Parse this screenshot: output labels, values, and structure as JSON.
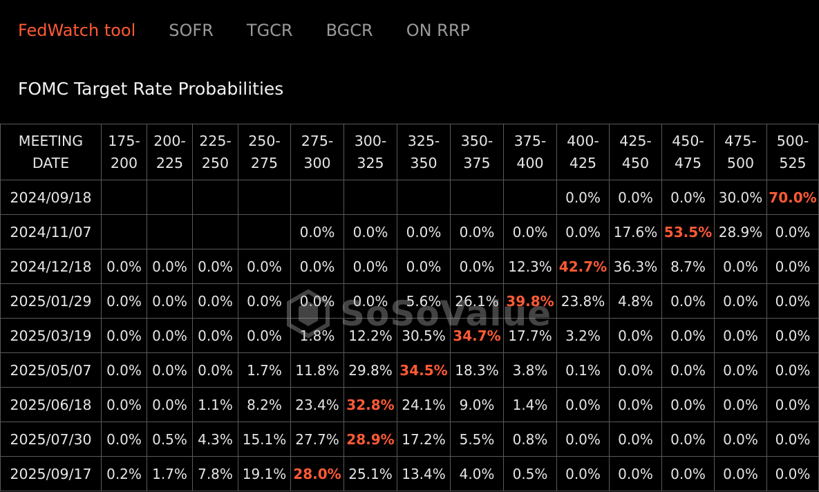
{
  "tabs": [
    {
      "label": "FedWatch tool",
      "active": true
    },
    {
      "label": "SOFR",
      "active": false
    },
    {
      "label": "TGCR",
      "active": false
    },
    {
      "label": "BGCR",
      "active": false
    },
    {
      "label": "ON RRP",
      "active": false
    }
  ],
  "title": "FOMC Target Rate Probabilities",
  "watermark": "SoSoValue",
  "accent_color": "#ff5a36",
  "table": {
    "first_header": [
      "MEETING",
      "DATE"
    ],
    "columns": [
      [
        "175-",
        "200"
      ],
      [
        "200-",
        "225"
      ],
      [
        "225-",
        "250"
      ],
      [
        "250-",
        "275"
      ],
      [
        "275-",
        "300"
      ],
      [
        "300-",
        "325"
      ],
      [
        "325-",
        "350"
      ],
      [
        "350-",
        "375"
      ],
      [
        "375-",
        "400"
      ],
      [
        "400-",
        "425"
      ],
      [
        "425-",
        "450"
      ],
      [
        "450-",
        "475"
      ],
      [
        "475-",
        "500"
      ],
      [
        "500-",
        "525"
      ]
    ],
    "rows": [
      {
        "date": "2024/09/18",
        "values": [
          "",
          "",
          "",
          "",
          "",
          "",
          "",
          "",
          "",
          "0.0%",
          "0.0%",
          "0.0%",
          "30.0%",
          "70.0%"
        ],
        "max": 13
      },
      {
        "date": "2024/11/07",
        "values": [
          "",
          "",
          "",
          "",
          "0.0%",
          "0.0%",
          "0.0%",
          "0.0%",
          "0.0%",
          "0.0%",
          "17.6%",
          "53.5%",
          "28.9%",
          "0.0%"
        ],
        "max": 11
      },
      {
        "date": "2024/12/18",
        "values": [
          "0.0%",
          "0.0%",
          "0.0%",
          "0.0%",
          "0.0%",
          "0.0%",
          "0.0%",
          "0.0%",
          "12.3%",
          "42.7%",
          "36.3%",
          "8.7%",
          "0.0%",
          "0.0%"
        ],
        "max": 9
      },
      {
        "date": "2025/01/29",
        "values": [
          "0.0%",
          "0.0%",
          "0.0%",
          "0.0%",
          "0.0%",
          "0.0%",
          "5.6%",
          "26.1%",
          "39.8%",
          "23.8%",
          "4.8%",
          "0.0%",
          "0.0%",
          "0.0%"
        ],
        "max": 8
      },
      {
        "date": "2025/03/19",
        "values": [
          "0.0%",
          "0.0%",
          "0.0%",
          "0.0%",
          "1.8%",
          "12.2%",
          "30.5%",
          "34.7%",
          "17.7%",
          "3.2%",
          "0.0%",
          "0.0%",
          "0.0%",
          "0.0%"
        ],
        "max": 7
      },
      {
        "date": "2025/05/07",
        "values": [
          "0.0%",
          "0.0%",
          "0.0%",
          "1.7%",
          "11.8%",
          "29.8%",
          "34.5%",
          "18.3%",
          "3.8%",
          "0.1%",
          "0.0%",
          "0.0%",
          "0.0%",
          "0.0%"
        ],
        "max": 6
      },
      {
        "date": "2025/06/18",
        "values": [
          "0.0%",
          "0.0%",
          "1.1%",
          "8.2%",
          "23.4%",
          "32.8%",
          "24.1%",
          "9.0%",
          "1.4%",
          "0.0%",
          "0.0%",
          "0.0%",
          "0.0%",
          "0.0%"
        ],
        "max": 5
      },
      {
        "date": "2025/07/30",
        "values": [
          "0.0%",
          "0.5%",
          "4.3%",
          "15.1%",
          "27.7%",
          "28.9%",
          "17.2%",
          "5.5%",
          "0.8%",
          "0.0%",
          "0.0%",
          "0.0%",
          "0.0%",
          "0.0%"
        ],
        "max": 5
      },
      {
        "date": "2025/09/17",
        "values": [
          "0.2%",
          "1.7%",
          "7.8%",
          "19.1%",
          "28.0%",
          "25.1%",
          "13.4%",
          "4.0%",
          "0.5%",
          "0.0%",
          "0.0%",
          "0.0%",
          "0.0%",
          "0.0%"
        ],
        "max": 4
      }
    ]
  }
}
